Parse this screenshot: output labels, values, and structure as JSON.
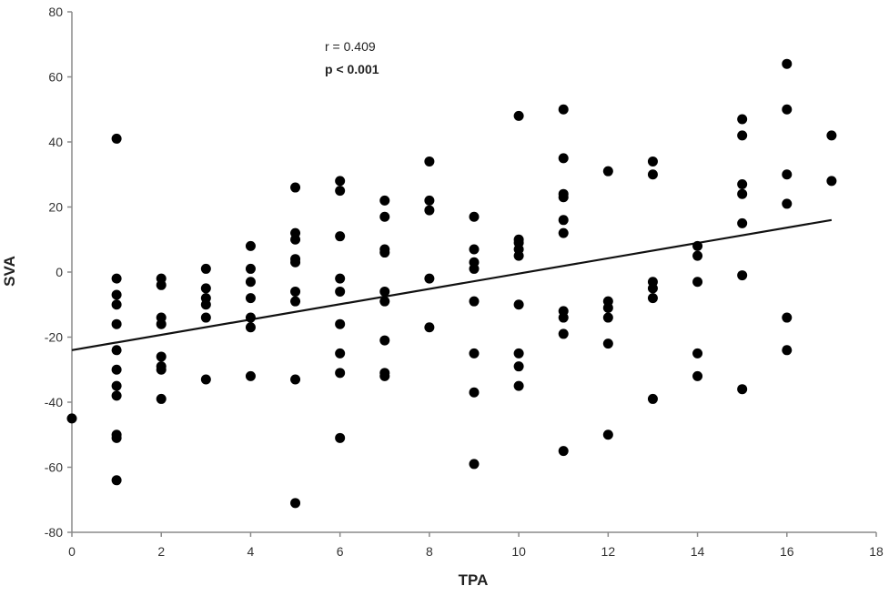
{
  "chart_data": {
    "type": "scatter",
    "xlabel": "TPA",
    "ylabel": "SVA",
    "xlim": [
      0,
      18
    ],
    "ylim": [
      -80,
      80
    ],
    "x_ticks": [
      0,
      2,
      4,
      6,
      8,
      10,
      12,
      14,
      16,
      18
    ],
    "y_ticks": [
      -80,
      -60,
      -40,
      -20,
      0,
      20,
      40,
      60,
      80
    ],
    "grid": false,
    "legend": "none",
    "annotations": [
      {
        "text": "r = 0.409",
        "bold": false
      },
      {
        "text": "p < 0.001",
        "bold": true
      }
    ],
    "colors": {
      "points": "#000000",
      "axis": "#8a8a8a",
      "trend": "#111111"
    },
    "trendline": {
      "x": [
        0,
        17
      ],
      "y": [
        -24,
        16
      ]
    },
    "points": [
      [
        0,
        -45
      ],
      [
        1,
        41
      ],
      [
        1,
        -2
      ],
      [
        1,
        -7
      ],
      [
        1,
        -10
      ],
      [
        1,
        -16
      ],
      [
        1,
        -24
      ],
      [
        1,
        -30
      ],
      [
        1,
        -35
      ],
      [
        1,
        -38
      ],
      [
        1,
        -50
      ],
      [
        1,
        -51
      ],
      [
        1,
        -64
      ],
      [
        2,
        -2
      ],
      [
        2,
        -4
      ],
      [
        2,
        -14
      ],
      [
        2,
        -16
      ],
      [
        2,
        -26
      ],
      [
        2,
        -29
      ],
      [
        2,
        -30
      ],
      [
        2,
        -39
      ],
      [
        3,
        1
      ],
      [
        3,
        -5
      ],
      [
        3,
        -8
      ],
      [
        3,
        -10
      ],
      [
        3,
        -14
      ],
      [
        3,
        -33
      ],
      [
        4,
        8
      ],
      [
        4,
        1
      ],
      [
        4,
        -3
      ],
      [
        4,
        -8
      ],
      [
        4,
        -14
      ],
      [
        4,
        -17
      ],
      [
        4,
        -32
      ],
      [
        5,
        26
      ],
      [
        5,
        12
      ],
      [
        5,
        10
      ],
      [
        5,
        4
      ],
      [
        5,
        3
      ],
      [
        5,
        -6
      ],
      [
        5,
        -9
      ],
      [
        5,
        -33
      ],
      [
        5,
        -71
      ],
      [
        6,
        28
      ],
      [
        6,
        25
      ],
      [
        6,
        11
      ],
      [
        6,
        -2
      ],
      [
        6,
        -6
      ],
      [
        6,
        -16
      ],
      [
        6,
        -25
      ],
      [
        6,
        -31
      ],
      [
        6,
        -51
      ],
      [
        7,
        22
      ],
      [
        7,
        17
      ],
      [
        7,
        7
      ],
      [
        7,
        6
      ],
      [
        7,
        -6
      ],
      [
        7,
        -9
      ],
      [
        7,
        -21
      ],
      [
        7,
        -31
      ],
      [
        7,
        -32
      ],
      [
        8,
        34
      ],
      [
        8,
        22
      ],
      [
        8,
        19
      ],
      [
        8,
        -2
      ],
      [
        8,
        -17
      ],
      [
        9,
        17
      ],
      [
        9,
        7
      ],
      [
        9,
        3
      ],
      [
        9,
        1
      ],
      [
        9,
        -9
      ],
      [
        9,
        -25
      ],
      [
        9,
        -37
      ],
      [
        9,
        -59
      ],
      [
        10,
        48
      ],
      [
        10,
        10
      ],
      [
        10,
        9
      ],
      [
        10,
        7
      ],
      [
        10,
        5
      ],
      [
        10,
        -10
      ],
      [
        10,
        -25
      ],
      [
        10,
        -29
      ],
      [
        10,
        -35
      ],
      [
        11,
        50
      ],
      [
        11,
        35
      ],
      [
        11,
        24
      ],
      [
        11,
        23
      ],
      [
        11,
        16
      ],
      [
        11,
        12
      ],
      [
        11,
        -12
      ],
      [
        11,
        -14
      ],
      [
        11,
        -19
      ],
      [
        11,
        -55
      ],
      [
        12,
        31
      ],
      [
        12,
        -9
      ],
      [
        12,
        -11
      ],
      [
        12,
        -14
      ],
      [
        12,
        -22
      ],
      [
        12,
        -50
      ],
      [
        13,
        34
      ],
      [
        13,
        30
      ],
      [
        13,
        -3
      ],
      [
        13,
        -5
      ],
      [
        13,
        -8
      ],
      [
        13,
        -39
      ],
      [
        14,
        8
      ],
      [
        14,
        5
      ],
      [
        14,
        -3
      ],
      [
        14,
        -25
      ],
      [
        14,
        -32
      ],
      [
        15,
        47
      ],
      [
        15,
        42
      ],
      [
        15,
        27
      ],
      [
        15,
        24
      ],
      [
        15,
        15
      ],
      [
        15,
        -1
      ],
      [
        15,
        -36
      ],
      [
        16,
        64
      ],
      [
        16,
        50
      ],
      [
        16,
        30
      ],
      [
        16,
        21
      ],
      [
        16,
        -14
      ],
      [
        16,
        -24
      ],
      [
        17,
        42
      ],
      [
        17,
        28
      ]
    ]
  }
}
